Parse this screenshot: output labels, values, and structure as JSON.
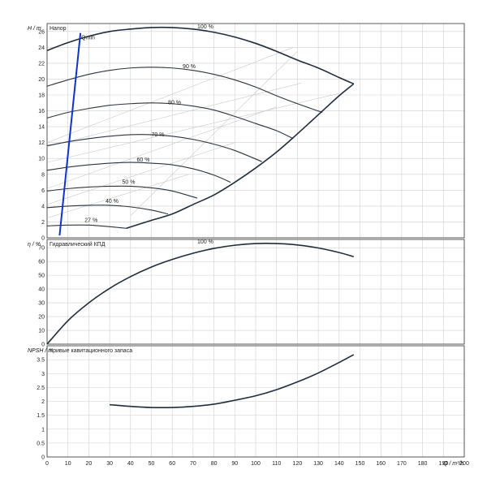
{
  "chart_data": [
    {
      "type": "line",
      "title": "Напор",
      "ylabel": "H / m",
      "xlim": [
        0,
        200
      ],
      "ylim": [
        0,
        27
      ],
      "yticks": [
        0,
        2,
        4,
        6,
        8,
        10,
        12,
        14,
        16,
        18,
        20,
        22,
        24,
        26
      ],
      "curve_labels": [
        {
          "text": "100 %",
          "x": 72,
          "y": 26.4
        },
        {
          "text": "90 %",
          "x": 65,
          "y": 21.4
        },
        {
          "text": "80 %",
          "x": 58,
          "y": 16.8
        },
        {
          "text": "70 %",
          "x": 50,
          "y": 12.8
        },
        {
          "text": "60 %",
          "x": 43,
          "y": 9.6
        },
        {
          "text": "50 %",
          "x": 36,
          "y": 6.8
        },
        {
          "text": "40 %",
          "x": 28,
          "y": 4.4
        },
        {
          "text": "27 %",
          "x": 18,
          "y": 2.0
        }
      ],
      "speed_curves": [
        {
          "name": "100 %",
          "x": [
            0,
            10,
            20,
            30,
            40,
            50,
            60,
            70,
            80,
            90,
            100,
            110,
            120,
            130,
            140,
            147
          ],
          "y": [
            23.6,
            24.6,
            25.4,
            26.0,
            26.3,
            26.5,
            26.5,
            26.3,
            25.9,
            25.3,
            24.5,
            23.5,
            22.4,
            21.4,
            20.2,
            19.4
          ]
        },
        {
          "name": "90 %",
          "x": [
            0,
            10,
            20,
            30,
            40,
            50,
            60,
            70,
            80,
            90,
            100,
            110,
            120,
            132
          ],
          "y": [
            19.1,
            19.9,
            20.6,
            21.1,
            21.4,
            21.5,
            21.4,
            21.1,
            20.6,
            19.9,
            19.0,
            17.9,
            16.9,
            15.8
          ]
        },
        {
          "name": "80 %",
          "x": [
            0,
            10,
            20,
            30,
            40,
            50,
            60,
            70,
            80,
            90,
            100,
            110,
            118
          ],
          "y": [
            15.1,
            15.8,
            16.3,
            16.7,
            16.9,
            17.0,
            16.9,
            16.6,
            16.1,
            15.3,
            14.4,
            13.5,
            12.5
          ]
        },
        {
          "name": "70 %",
          "x": [
            0,
            10,
            20,
            30,
            40,
            50,
            60,
            70,
            80,
            90,
            103
          ],
          "y": [
            11.6,
            12.1,
            12.5,
            12.8,
            13.0,
            13.0,
            12.8,
            12.4,
            11.8,
            11.0,
            9.6
          ]
        },
        {
          "name": "60 %",
          "x": [
            0,
            10,
            20,
            30,
            40,
            50,
            60,
            70,
            80,
            88
          ],
          "y": [
            8.5,
            8.9,
            9.2,
            9.4,
            9.5,
            9.4,
            9.2,
            8.7,
            7.9,
            7.0
          ]
        },
        {
          "name": "50 %",
          "x": [
            0,
            10,
            20,
            30,
            40,
            50,
            60,
            72
          ],
          "y": [
            5.9,
            6.2,
            6.4,
            6.5,
            6.5,
            6.3,
            5.9,
            5.0
          ]
        },
        {
          "name": "40 %",
          "x": [
            0,
            10,
            20,
            30,
            40,
            50,
            58
          ],
          "y": [
            3.8,
            4.0,
            4.1,
            4.1,
            3.9,
            3.5,
            3.0
          ]
        },
        {
          "name": "27 %",
          "x": [
            0,
            10,
            20,
            30,
            38
          ],
          "y": [
            1.5,
            1.6,
            1.6,
            1.4,
            1.2
          ]
        }
      ],
      "limit_curve": {
        "x": [
          38,
          50,
          60,
          70,
          80,
          90,
          100,
          110,
          120,
          130,
          140,
          147
        ],
        "y": [
          1.2,
          2.2,
          3.0,
          4.2,
          5.4,
          7.0,
          8.8,
          10.8,
          13.1,
          15.5,
          17.9,
          19.4
        ]
      },
      "operating_line": {
        "label": "Qmin",
        "x": [
          6,
          16
        ],
        "y": [
          0.3,
          25.8
        ]
      }
    },
    {
      "type": "line",
      "title": "Гидравлический КПД",
      "ylabel": "η / %",
      "xlim": [
        0,
        200
      ],
      "ylim": [
        0,
        76
      ],
      "yticks": [
        0,
        10,
        20,
        30,
        40,
        50,
        60,
        70
      ],
      "curve_labels": [
        {
          "text": "100 %",
          "x": 72,
          "y": 73
        }
      ],
      "series": [
        {
          "name": "100 %",
          "x": [
            0,
            10,
            20,
            30,
            40,
            50,
            60,
            70,
            80,
            90,
            100,
            110,
            120,
            130,
            140,
            147
          ],
          "y": [
            0,
            17,
            30,
            40.5,
            49,
            56,
            61.5,
            66,
            69.5,
            71.8,
            73,
            73,
            72,
            69.8,
            66.5,
            63.5
          ]
        }
      ]
    },
    {
      "type": "line",
      "title": "Кривые кавитационного запаса",
      "ylabel": "NPSH / m",
      "xlabel": "Q / m³/h",
      "xlim": [
        0,
        200
      ],
      "ylim": [
        0,
        4
      ],
      "yticks": [
        0,
        0.5,
        1,
        1.5,
        2,
        2.5,
        3,
        3.5
      ],
      "xticks": [
        0,
        10,
        20,
        30,
        40,
        50,
        60,
        70,
        80,
        90,
        100,
        110,
        120,
        130,
        140,
        150,
        160,
        170,
        180,
        190,
        200
      ],
      "series": [
        {
          "name": "NPSH",
          "x": [
            30,
            40,
            50,
            60,
            70,
            80,
            90,
            100,
            110,
            120,
            130,
            140,
            147
          ],
          "y": [
            1.88,
            1.82,
            1.78,
            1.78,
            1.82,
            1.9,
            2.04,
            2.2,
            2.42,
            2.7,
            3.02,
            3.4,
            3.68
          ]
        }
      ]
    }
  ]
}
